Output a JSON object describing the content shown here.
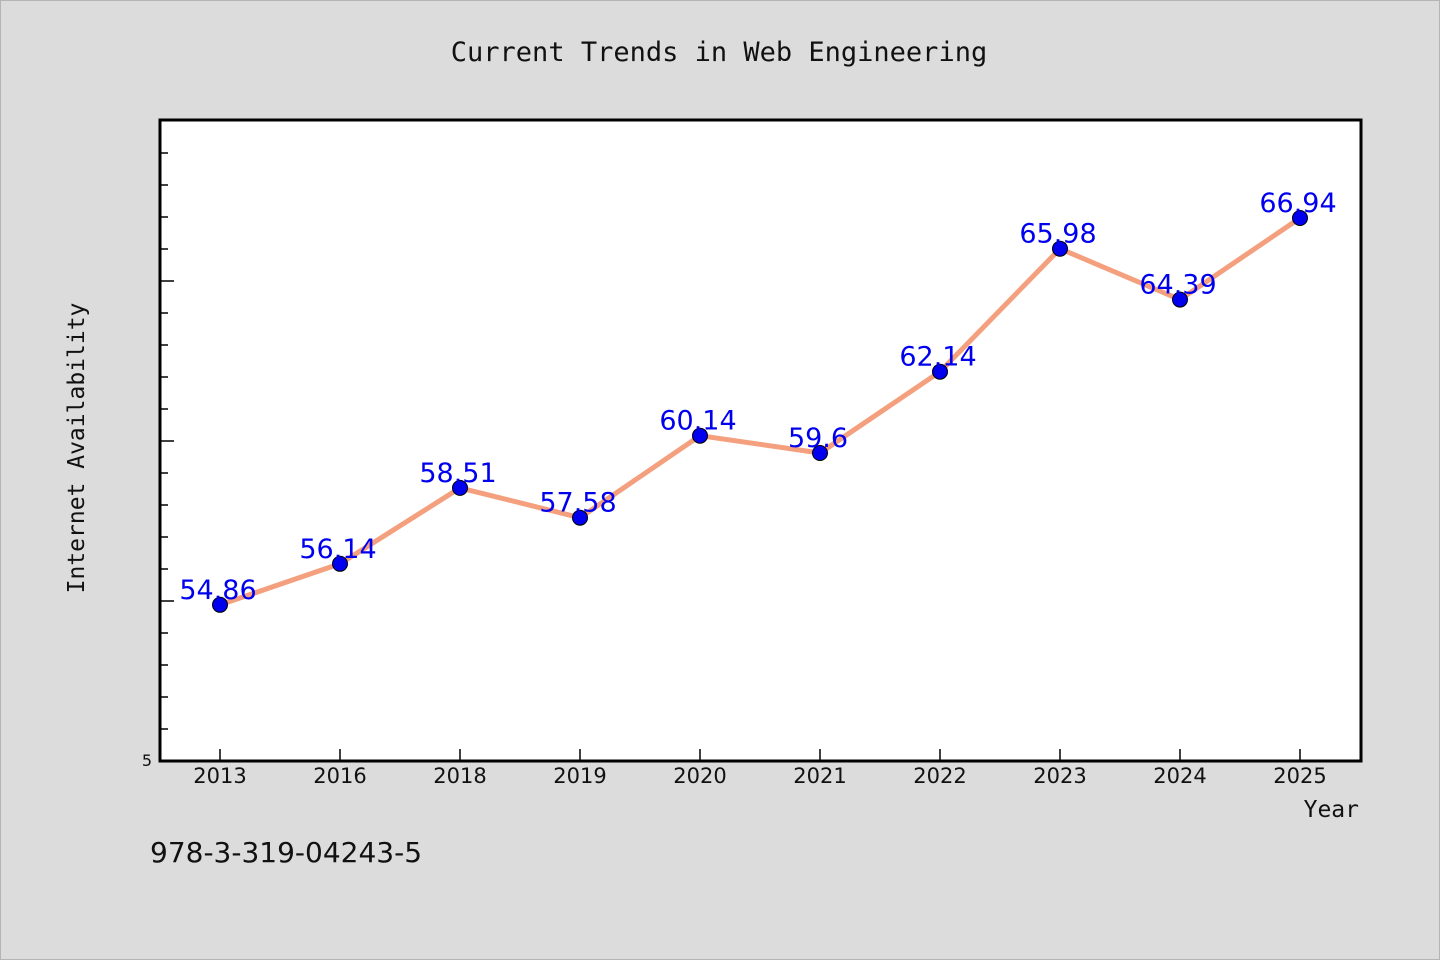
{
  "chart_data": {
    "type": "line",
    "title": "Current Trends in Web Engineering",
    "xlabel": "Year",
    "ylabel": "Internet Availability",
    "categories": [
      "2013",
      "2016",
      "2018",
      "2019",
      "2020",
      "2021",
      "2022",
      "2023",
      "2024",
      "2025"
    ],
    "values": [
      54.86,
      56.14,
      58.51,
      57.58,
      60.14,
      59.6,
      62.14,
      65.98,
      64.39,
      66.94
    ],
    "data_labels": [
      "54.86",
      "56.14",
      "58.51",
      "57.58",
      "60.14",
      "59.6",
      "62.14",
      "65.98",
      "64.39",
      "66.94"
    ],
    "y_tick_labels": [
      "5"
    ],
    "ylim": [
      49.98,
      70.0
    ],
    "grid": false,
    "line_color": "#f4a07e",
    "marker_color": "#0000ee",
    "label_color": "#0000ee"
  },
  "footer": {
    "isbn": "978-3-319-04243-5"
  }
}
